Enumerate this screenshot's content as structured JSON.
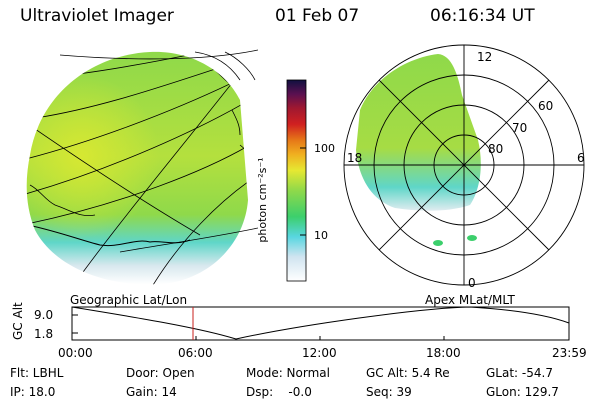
{
  "header": {
    "title": "Ultraviolet Imager",
    "date": "01 Feb 07",
    "time": "06:16:34 UT"
  },
  "colorbar": {
    "unit_label": "photon cm⁻²s⁻¹",
    "ticks": [
      "100",
      "10"
    ]
  },
  "polar": {
    "ring_labels": [
      "60",
      "70",
      "80"
    ],
    "hour_labels": [
      "12",
      "18",
      "6",
      "0"
    ]
  },
  "panels": {
    "left_caption": "Geographic Lat/Lon",
    "right_caption": "Apex  MLat/MLT"
  },
  "altitude_plot": {
    "y_label": "GC Alt",
    "y_ticks": [
      "9.0",
      "1.8"
    ],
    "x_ticks": [
      "00:00",
      "06:00",
      "12:00",
      "18:00",
      "23:59"
    ],
    "marker_time": "06:16:34"
  },
  "status": {
    "filter": "Flt: LBHL",
    "ip": "IP: 18.0",
    "door": "Door: Open",
    "gain": "Gain: 14",
    "mode": "Mode: Normal",
    "dsp": "Dsp:    -0.0",
    "gc_alt": "GC Alt: 5.4 Re",
    "seq": "Seq: 39",
    "glat": "GLat: -54.7",
    "glon": "GLon: 129.7"
  },
  "colors": {
    "aurora_main": "#8fd94a",
    "aurora_bright": "#c8e63a",
    "aurora_cyan": "#5fd6c8",
    "marker": "#c8201e"
  }
}
